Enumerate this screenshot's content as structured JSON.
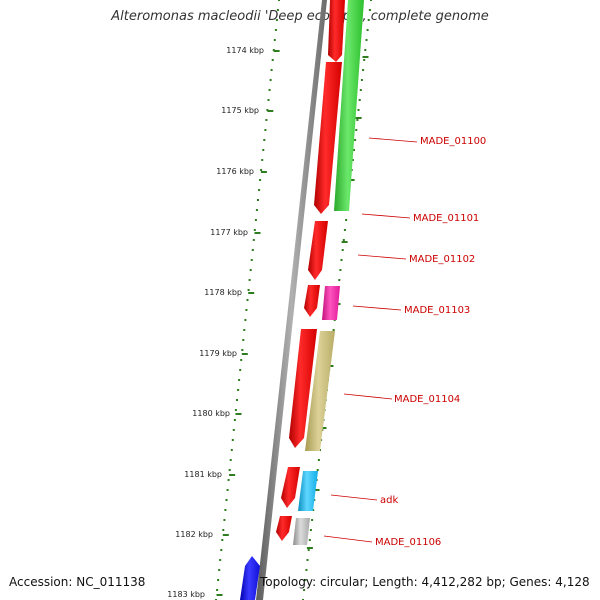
{
  "title": "Alteromonas macleodii 'Deep ecotype', complete genome",
  "accession": "Accession: NC_011138",
  "topology": "Topology: circular; Length: 4,412,282 bp; Genes: 4,128",
  "scale_labels": [
    "1174 kbp",
    "1175 kbp",
    "1176 kbp",
    "1177 kbp",
    "1178 kbp",
    "1179 kbp",
    "1180 kbp",
    "1181 kbp",
    "1182 kbp",
    "1183 kbp"
  ],
  "gene_labels": [
    "MADE_01100",
    "MADE_01101",
    "MADE_01102",
    "MADE_01103",
    "MADE_01104",
    "adk",
    "MADE_01106"
  ],
  "colors": {
    "forward_strand": "#ff0000",
    "label_text": "#cc0000",
    "leader_line": "#cc0000",
    "backbone": "#808080",
    "tick": "#2e7d1f",
    "MADE_01100": "#3ccf3c",
    "MADE_01103": "#ee1fa0",
    "MADE_01104": "#c2b670",
    "adk": "#18b8ec",
    "MADE_01106": "#b4b4b4",
    "other_gene": "#1a1aff"
  }
}
